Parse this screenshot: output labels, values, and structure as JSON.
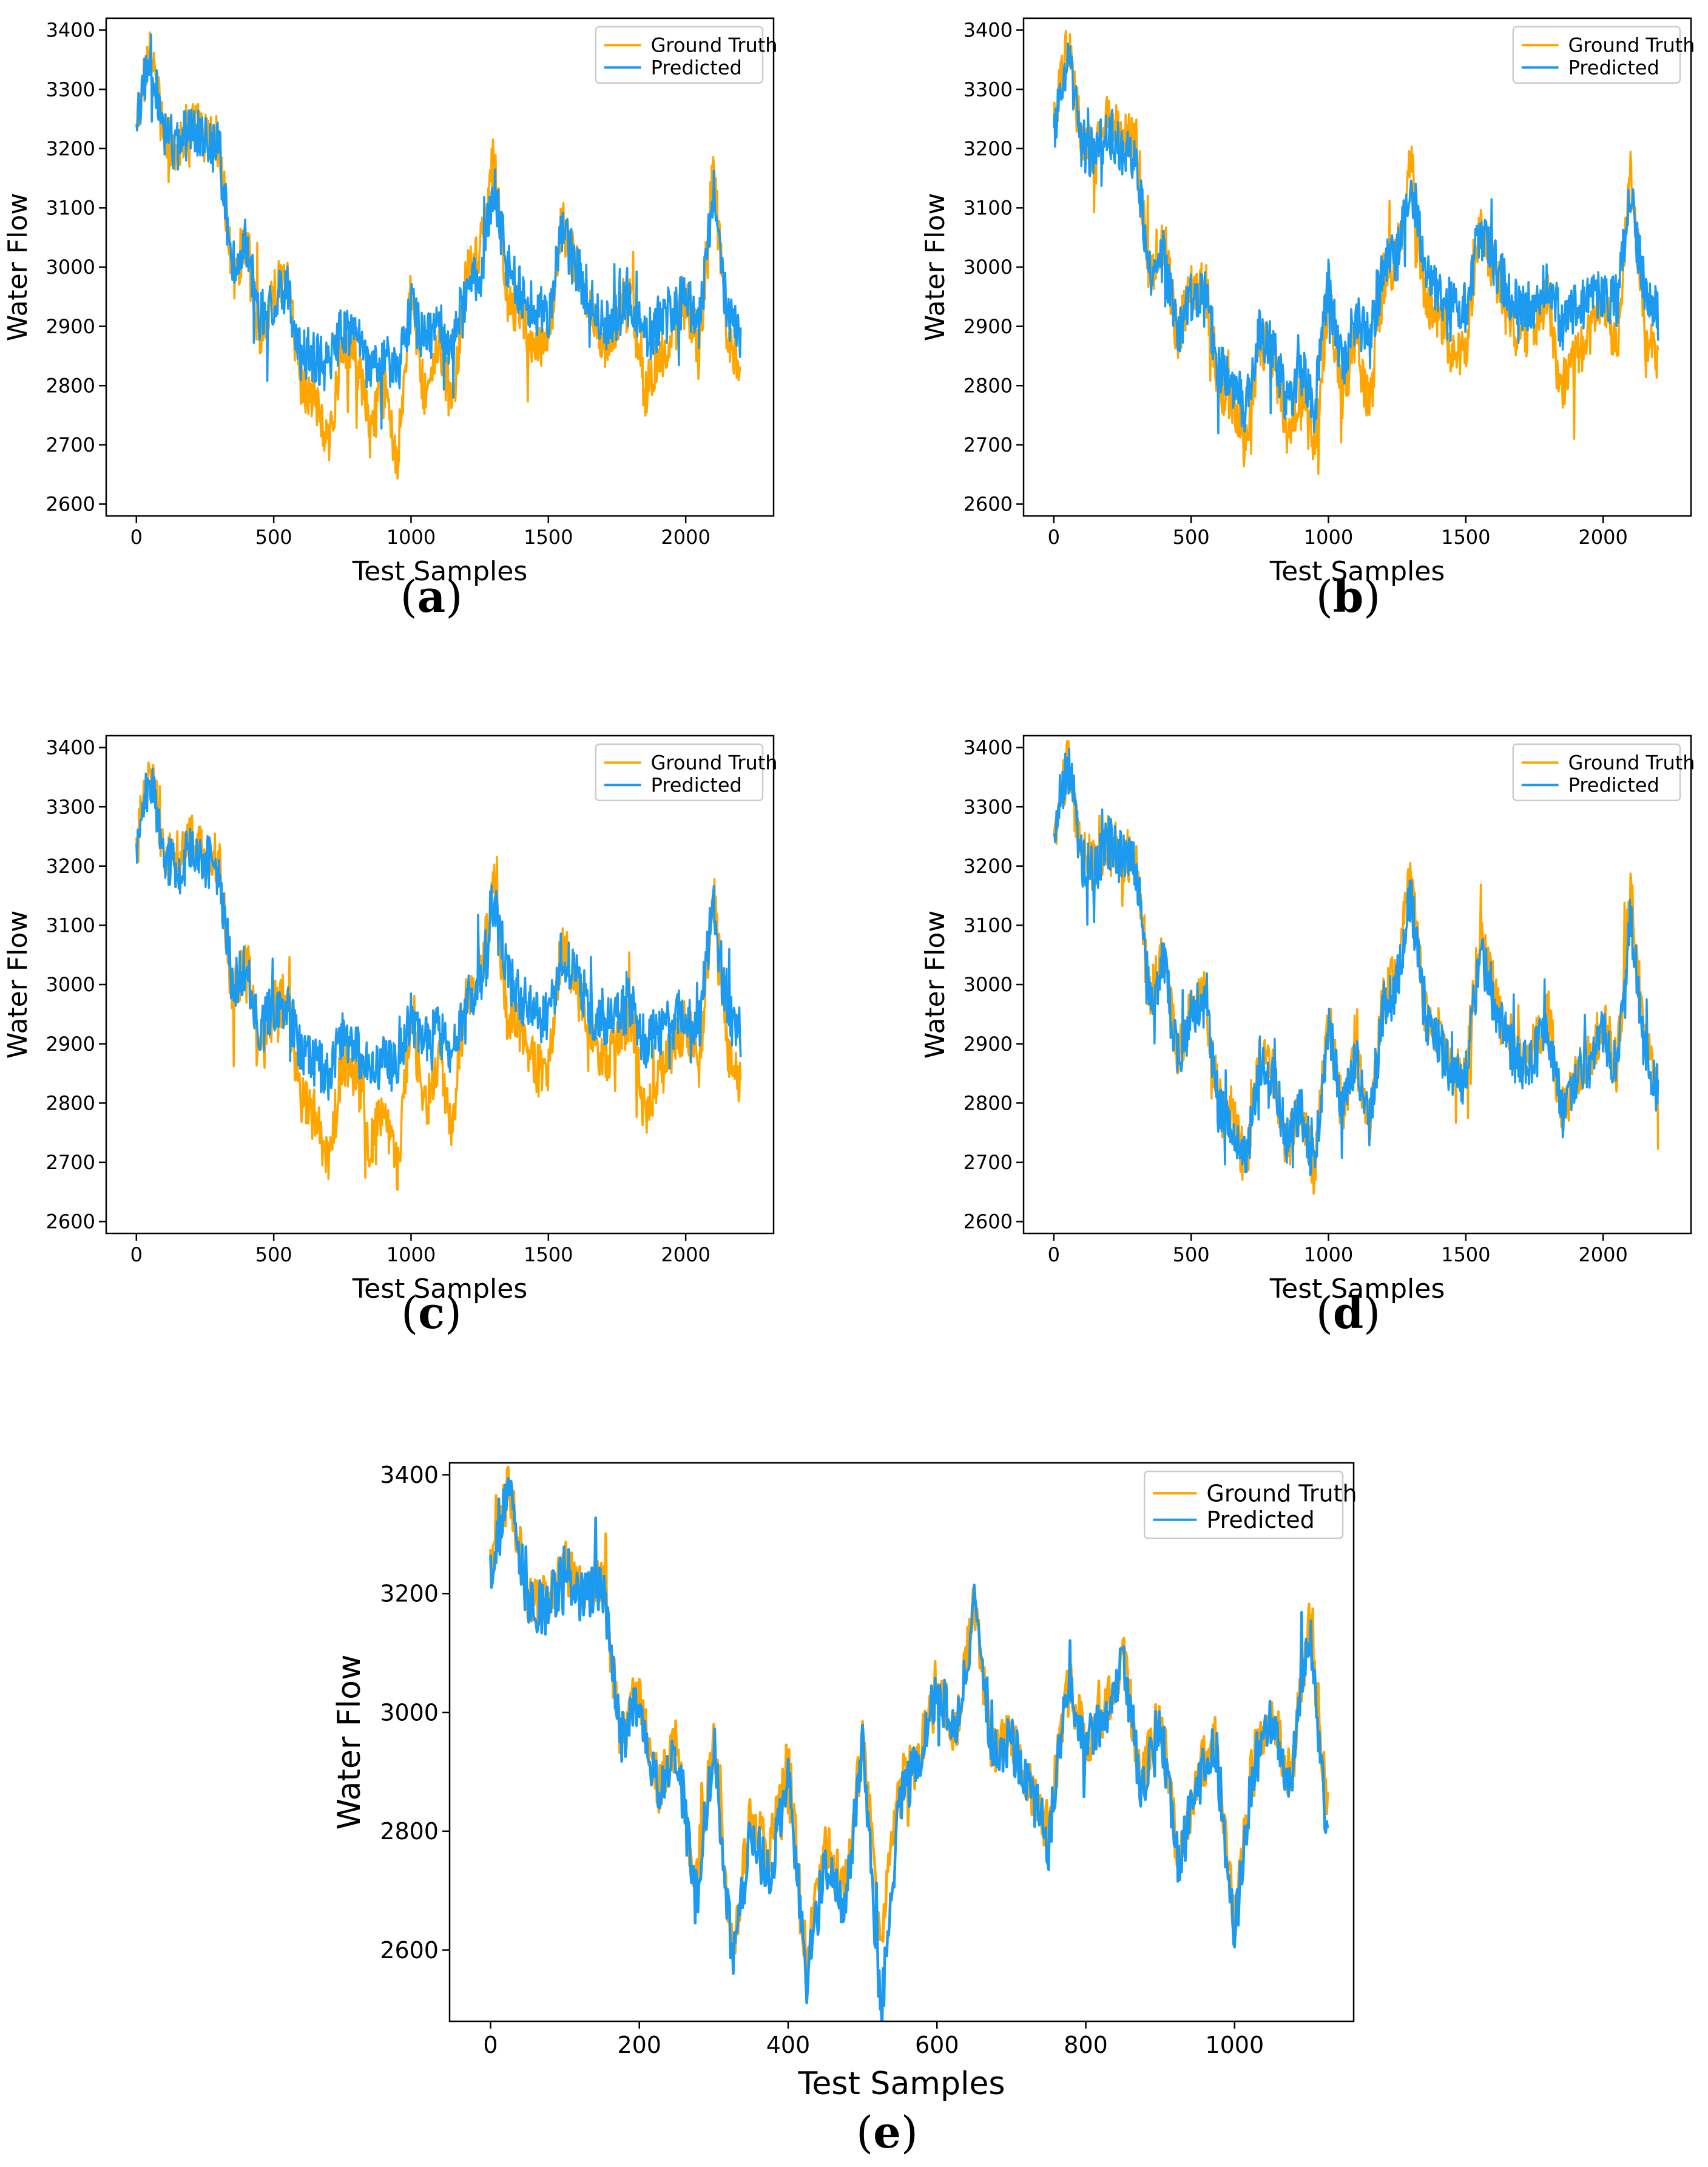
{
  "figure": {
    "colors": {
      "ground_truth": "#FFA500",
      "predicted": "#1B9AF0",
      "axis": "#000000",
      "legend_border": "#cccccc"
    }
  },
  "chart_data": [
    {
      "id": "a",
      "caption": "(a)",
      "type": "line",
      "xlabel": "Test Samples",
      "ylabel": "Water Flow",
      "xlim": [
        -110,
        2320
      ],
      "ylim": [
        2580,
        3420
      ],
      "xticks": [
        0,
        500,
        1000,
        1500,
        2000
      ],
      "xtick_labels": [
        "0",
        "500",
        "1000",
        "1500",
        "2000"
      ],
      "yticks": [
        2600,
        2700,
        2800,
        2900,
        3000,
        3100,
        3200,
        3300,
        3400
      ],
      "ytick_labels": [
        "2600",
        "2700",
        "2800",
        "2900",
        "3000",
        "3100",
        "3200",
        "3300",
        "3400"
      ],
      "legend": {
        "placement": "upper right",
        "entries": [
          "Ground Truth",
          "Predicted"
        ]
      },
      "series": [
        {
          "name": "Ground Truth",
          "color": "#FFA500",
          "x_start": 0,
          "x_step": 50,
          "values": [
            3230,
            3380,
            3220,
            3200,
            3250,
            3220,
            3210,
            2980,
            3050,
            2880,
            2960,
            2980,
            2800,
            2780,
            2690,
            2880,
            2850,
            2720,
            2800,
            2680,
            2960,
            2780,
            2880,
            2760,
            2980,
            3020,
            3180,
            2950,
            2920,
            2860,
            2850,
            3080,
            3000,
            2920,
            2870,
            2900,
            2950,
            2780,
            2850,
            2880,
            2940,
            2860,
            3160,
            2900,
            2830
          ]
        },
        {
          "name": "Predicted",
          "color": "#1B9AF0",
          "x_start": 0,
          "x_step": 50,
          "values": [
            3230,
            3370,
            3230,
            3200,
            3240,
            3210,
            3200,
            3000,
            3040,
            2910,
            2950,
            2960,
            2860,
            2850,
            2830,
            2900,
            2880,
            2820,
            2850,
            2820,
            2930,
            2880,
            2900,
            2870,
            2960,
            2980,
            3140,
            3000,
            2960,
            2930,
            2920,
            3060,
            3000,
            2950,
            2900,
            2920,
            2950,
            2880,
            2900,
            2920,
            2950,
            2900,
            3130,
            2920,
            2880
          ]
        }
      ]
    },
    {
      "id": "b",
      "caption": "(b)",
      "type": "line",
      "xlabel": "Test Samples",
      "ylabel": "Water Flow",
      "xlim": [
        -110,
        2320
      ],
      "ylim": [
        2580,
        3420
      ],
      "xticks": [
        0,
        500,
        1000,
        1500,
        2000
      ],
      "xtick_labels": [
        "0",
        "500",
        "1000",
        "1500",
        "2000"
      ],
      "yticks": [
        2600,
        2700,
        2800,
        2900,
        3000,
        3100,
        3200,
        3300,
        3400
      ],
      "ytick_labels": [
        "2600",
        "2700",
        "2800",
        "2900",
        "3000",
        "3100",
        "3200",
        "3300",
        "3400"
      ],
      "legend": {
        "placement": "upper right",
        "entries": [
          "Ground Truth",
          "Predicted"
        ]
      },
      "series": [
        {
          "name": "Ground Truth",
          "color": "#FFA500",
          "x_start": 0,
          "x_step": 50,
          "values": [
            3230,
            3380,
            3220,
            3200,
            3250,
            3220,
            3210,
            2980,
            3050,
            2880,
            2960,
            2980,
            2800,
            2780,
            2690,
            2880,
            2850,
            2720,
            2800,
            2680,
            2960,
            2780,
            2880,
            2760,
            2980,
            3020,
            3180,
            2950,
            2920,
            2860,
            2850,
            3080,
            3000,
            2920,
            2870,
            2900,
            2950,
            2780,
            2850,
            2880,
            2940,
            2860,
            3160,
            2900,
            2830
          ]
        },
        {
          "name": "Predicted",
          "color": "#1B9AF0",
          "x_start": 0,
          "x_step": 50,
          "values": [
            3220,
            3360,
            3210,
            3190,
            3230,
            3200,
            3190,
            2990,
            3020,
            2890,
            2950,
            2960,
            2830,
            2810,
            2760,
            2890,
            2860,
            2770,
            2830,
            2760,
            2970,
            2830,
            2920,
            2870,
            3000,
            3020,
            3150,
            3000,
            2960,
            2940,
            2930,
            3060,
            3010,
            2960,
            2920,
            2940,
            2980,
            2900,
            2930,
            2940,
            2960,
            2940,
            3120,
            2960,
            2920
          ]
        }
      ]
    },
    {
      "id": "c",
      "caption": "(c)",
      "type": "line",
      "xlabel": "Test Samples",
      "ylabel": "Water Flow",
      "xlim": [
        -110,
        2320
      ],
      "ylim": [
        2580,
        3420
      ],
      "xticks": [
        0,
        500,
        1000,
        1500,
        2000
      ],
      "xtick_labels": [
        "0",
        "500",
        "1000",
        "1500",
        "2000"
      ],
      "yticks": [
        2600,
        2700,
        2800,
        2900,
        3000,
        3100,
        3200,
        3300,
        3400
      ],
      "ytick_labels": [
        "2600",
        "2700",
        "2800",
        "2900",
        "3000",
        "3100",
        "3200",
        "3300",
        "3400"
      ],
      "legend": {
        "placement": "upper right",
        "entries": [
          "Ground Truth",
          "Predicted"
        ]
      },
      "series": [
        {
          "name": "Ground Truth",
          "color": "#FFA500",
          "x_start": 0,
          "x_step": 50,
          "values": [
            3230,
            3380,
            3220,
            3200,
            3250,
            3220,
            3210,
            2980,
            3050,
            2880,
            2960,
            2980,
            2800,
            2780,
            2690,
            2880,
            2850,
            2720,
            2800,
            2680,
            2960,
            2780,
            2880,
            2760,
            2980,
            3020,
            3180,
            2950,
            2920,
            2860,
            2850,
            3080,
            3000,
            2920,
            2870,
            2900,
            2950,
            2780,
            2850,
            2880,
            2940,
            2860,
            3160,
            2900,
            2830
          ]
        },
        {
          "name": "Predicted",
          "color": "#1B9AF0",
          "x_start": 0,
          "x_step": 50,
          "values": [
            3220,
            3360,
            3220,
            3190,
            3230,
            3210,
            3190,
            3000,
            3030,
            2920,
            2960,
            2970,
            2880,
            2870,
            2850,
            2910,
            2890,
            2850,
            2870,
            2860,
            2950,
            2900,
            2920,
            2890,
            2970,
            3000,
            3150,
            3020,
            2980,
            2950,
            2940,
            3060,
            3010,
            2960,
            2930,
            2940,
            2970,
            2900,
            2920,
            2930,
            2960,
            2930,
            3140,
            2950,
            2920
          ]
        }
      ]
    },
    {
      "id": "d",
      "caption": "(d)",
      "type": "line",
      "xlabel": "Test Samples",
      "ylabel": "Water Flow",
      "xlim": [
        -110,
        2320
      ],
      "ylim": [
        2580,
        3420
      ],
      "xticks": [
        0,
        500,
        1000,
        1500,
        2000
      ],
      "xtick_labels": [
        "0",
        "500",
        "1000",
        "1500",
        "2000"
      ],
      "yticks": [
        2600,
        2700,
        2800,
        2900,
        3000,
        3100,
        3200,
        3300,
        3400
      ],
      "ytick_labels": [
        "2600",
        "2700",
        "2800",
        "2900",
        "3000",
        "3100",
        "3200",
        "3300",
        "3400"
      ],
      "legend": {
        "placement": "upper right",
        "entries": [
          "Ground Truth",
          "Predicted"
        ]
      },
      "series": [
        {
          "name": "Ground Truth",
          "color": "#FFA500",
          "x_start": 0,
          "x_step": 50,
          "values": [
            3230,
            3380,
            3220,
            3200,
            3250,
            3220,
            3210,
            2980,
            3050,
            2880,
            2960,
            2980,
            2800,
            2780,
            2690,
            2880,
            2850,
            2720,
            2800,
            2680,
            2960,
            2780,
            2880,
            2760,
            2980,
            3020,
            3180,
            2950,
            2920,
            2860,
            2850,
            3080,
            3000,
            2920,
            2870,
            2900,
            2950,
            2780,
            2850,
            2880,
            2940,
            2860,
            3160,
            2900,
            2830
          ]
        },
        {
          "name": "Predicted",
          "color": "#1B9AF0",
          "x_start": 0,
          "x_step": 50,
          "values": [
            3230,
            3380,
            3210,
            3190,
            3240,
            3210,
            3200,
            2970,
            3040,
            2870,
            2950,
            2970,
            2790,
            2770,
            2700,
            2870,
            2840,
            2730,
            2790,
            2690,
            2940,
            2790,
            2870,
            2770,
            2960,
            3000,
            3150,
            2940,
            2900,
            2850,
            2840,
            3060,
            2980,
            2900,
            2860,
            2880,
            2930,
            2780,
            2840,
            2870,
            2920,
            2850,
            3120,
            2880,
            2820
          ]
        }
      ]
    },
    {
      "id": "e",
      "caption": "(e)",
      "type": "line",
      "xlabel": "Test Samples",
      "ylabel": "Water Flow",
      "xlim": [
        -55,
        1160
      ],
      "ylim": [
        2480,
        3420
      ],
      "xticks": [
        0,
        200,
        400,
        600,
        800,
        1000
      ],
      "xtick_labels": [
        "0",
        "200",
        "400",
        "600",
        "800",
        "1000"
      ],
      "yticks": [
        2600,
        2800,
        3000,
        3200,
        3400
      ],
      "ytick_labels": [
        "2600",
        "2800",
        "3000",
        "3200",
        "3400"
      ],
      "legend": {
        "placement": "upper right",
        "entries": [
          "Ground Truth",
          "Predicted"
        ]
      },
      "series": [
        {
          "name": "Ground Truth",
          "color": "#FFA500",
          "x_start": 0,
          "x_step": 25,
          "values": [
            3250,
            3380,
            3200,
            3180,
            3250,
            3200,
            3230,
            2960,
            3040,
            2870,
            2950,
            2700,
            2960,
            2600,
            2830,
            2760,
            2920,
            2580,
            2780,
            2700,
            2950,
            2620,
            2880,
            2920,
            3060,
            2960,
            3180,
            2930,
            2960,
            2880,
            2800,
            3060,
            2950,
            3000,
            3100,
            2880,
            3000,
            2750,
            2900,
            2950,
            2640,
            2920,
            3000,
            2880,
            3160,
            2850
          ]
        },
        {
          "name": "Predicted",
          "color": "#1B9AF0",
          "x_start": 0,
          "x_step": 25,
          "values": [
            3240,
            3370,
            3190,
            3170,
            3240,
            3190,
            3220,
            2950,
            3030,
            2860,
            2940,
            2680,
            2950,
            2580,
            2800,
            2720,
            2900,
            2550,
            2750,
            2660,
            2940,
            2490,
            2860,
            2910,
            3050,
            2950,
            3170,
            2920,
            2950,
            2870,
            2780,
            3050,
            2940,
            2990,
            3090,
            2870,
            2990,
            2740,
            2890,
            2940,
            2630,
            2910,
            2990,
            2870,
            3150,
            2780
          ]
        }
      ]
    }
  ]
}
